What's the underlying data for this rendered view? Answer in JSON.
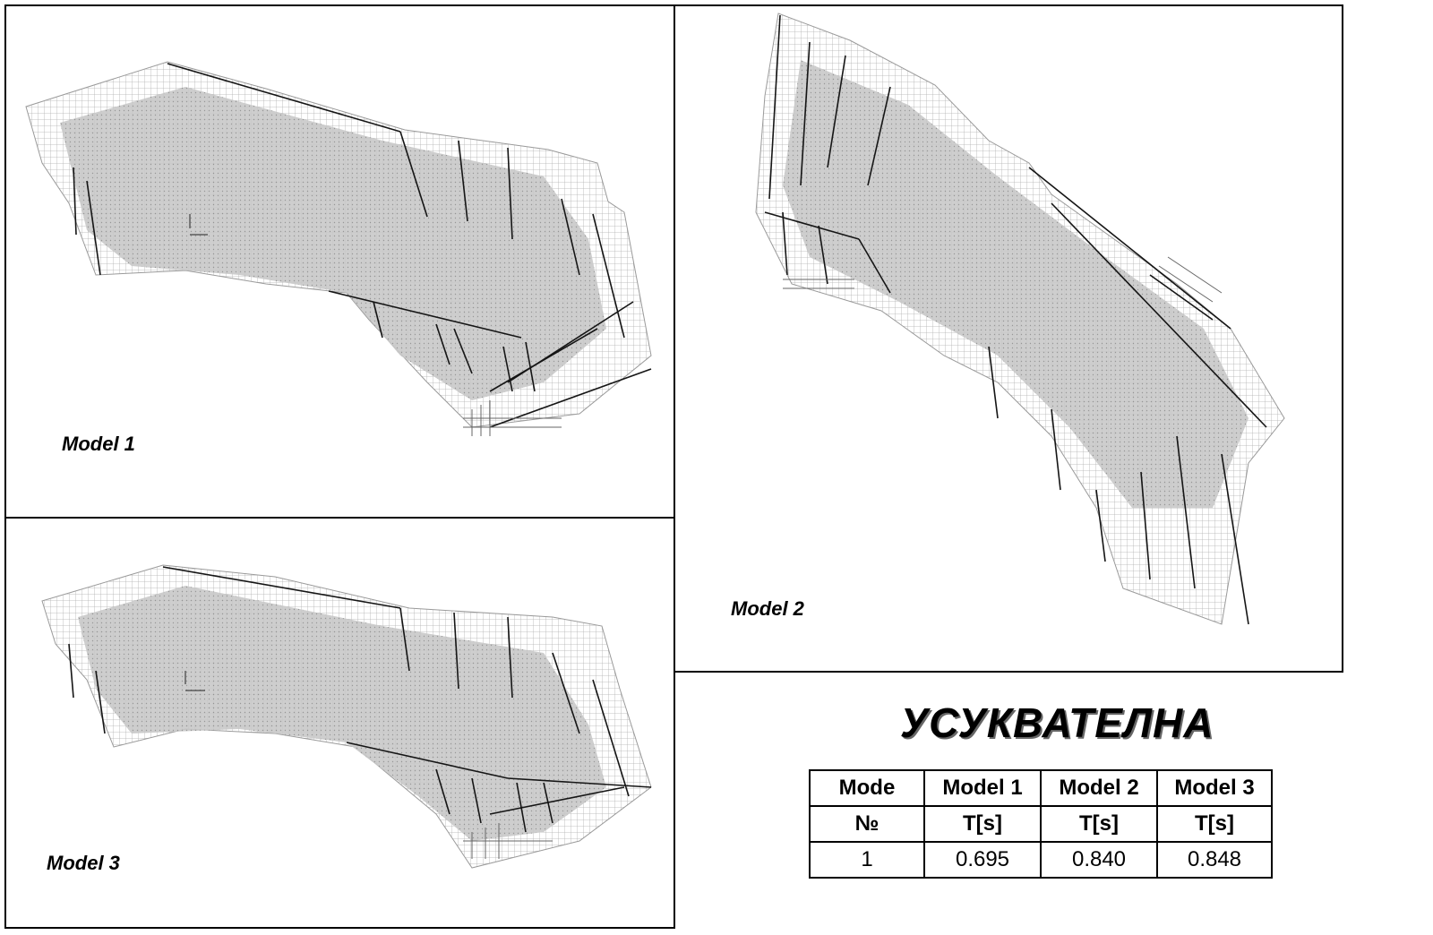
{
  "panels": [
    {
      "label": "Model 1"
    },
    {
      "label": "Model 2"
    },
    {
      "label": "Model 3"
    }
  ],
  "title": "УСУКВАТЕЛНА",
  "table": {
    "header_row1": [
      "Mode",
      "Model 1",
      "Model 2",
      "Model 3"
    ],
    "header_row2": [
      "№",
      "T[s]",
      "T[s]",
      "T[s]"
    ],
    "rows": [
      [
        "1",
        "0.695",
        "0.840",
        "0.848"
      ]
    ]
  },
  "colors": {
    "mesh": "#b3b3b3",
    "members": "#111111",
    "border": "#000000"
  }
}
